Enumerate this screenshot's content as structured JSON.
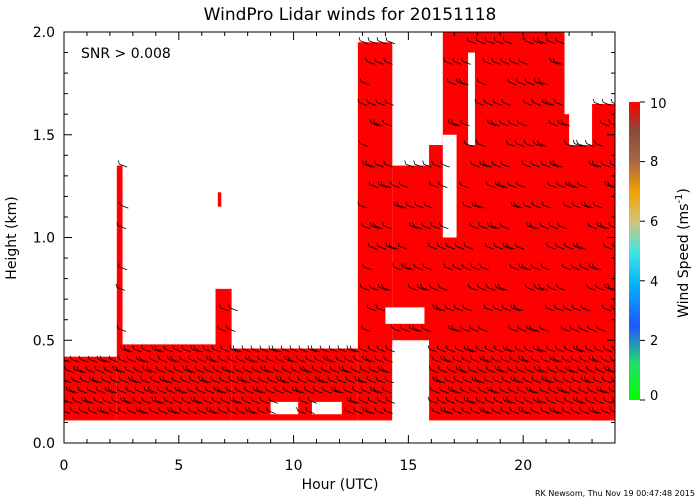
{
  "chart_data": {
    "type": "heatmap",
    "title": "WindPro Lidar winds for 20151118",
    "xlabel": "Hour (UTC)",
    "ylabel": "Height (km)",
    "xlim": [
      0,
      24
    ],
    "ylim": [
      0,
      2.0
    ],
    "x_ticks": [
      "0",
      "5",
      "10",
      "15",
      "20"
    ],
    "y_ticks": [
      "0.0",
      "0.5",
      "1.0",
      "1.5",
      "2.0"
    ],
    "annotation": "SNR > 0.008",
    "colorbar": {
      "label": "Wind Speed (ms",
      "label_sup": "-1",
      "label_close": ")",
      "ticks": [
        "0",
        "2",
        "4",
        "6",
        "8",
        "10"
      ],
      "range": [
        0,
        10
      ]
    },
    "credit": "RK Newsom, Thu Nov 19 00:47:48 2015",
    "colors": {
      "data_fill": "#ff0000",
      "barbs": "#000000",
      "background": "#ffffff"
    },
    "coverage": [
      {
        "x0": 0.0,
        "x1": 2.3,
        "y0": 0.11,
        "y1": 0.42
      },
      {
        "x0": 2.3,
        "x1": 2.55,
        "y0": 0.11,
        "y1": 1.35
      },
      {
        "x0": 2.55,
        "x1": 6.6,
        "y0": 0.11,
        "y1": 0.48
      },
      {
        "x0": 6.6,
        "x1": 7.3,
        "y0": 0.11,
        "y1": 0.75
      },
      {
        "x0": 7.3,
        "x1": 12.8,
        "y0": 0.11,
        "y1": 0.46
      },
      {
        "x0": 12.8,
        "x1": 14.3,
        "y0": 0.11,
        "y1": 1.95
      },
      {
        "x0": 14.3,
        "x1": 16.0,
        "y0": 0.5,
        "y1": 1.35
      },
      {
        "x0": 15.9,
        "x1": 24.0,
        "y0": 0.11,
        "y1": 1.45
      },
      {
        "x0": 16.5,
        "x1": 22.0,
        "y0": 1.2,
        "y1": 2.0
      },
      {
        "x0": 23.0,
        "x1": 24.0,
        "y0": 0.11,
        "y1": 1.65
      }
    ],
    "gaps": [
      {
        "x0": 14.3,
        "x1": 15.9,
        "y0": 0.11,
        "y1": 0.48
      },
      {
        "x0": 9.0,
        "x1": 10.2,
        "y0": 0.14,
        "y1": 0.2
      },
      {
        "x0": 10.8,
        "x1": 12.1,
        "y0": 0.14,
        "y1": 0.2
      },
      {
        "x0": 14.0,
        "x1": 15.7,
        "y0": 0.58,
        "y1": 0.66
      },
      {
        "x0": 16.5,
        "x1": 17.1,
        "y0": 1.0,
        "y1": 1.5
      },
      {
        "x0": 17.6,
        "x1": 17.9,
        "y0": 1.45,
        "y1": 1.9
      },
      {
        "x0": 21.8,
        "x1": 23.0,
        "y0": 1.6,
        "y1": 2.0
      }
    ],
    "isolated": [
      {
        "x0": 6.7,
        "x1": 6.85,
        "y0": 1.15,
        "y1": 1.22
      }
    ],
    "barb_levels_km": [
      0.15,
      0.2,
      0.25,
      0.3,
      0.35,
      0.4,
      0.45,
      0.55,
      0.65,
      0.75,
      0.85,
      0.95,
      1.05,
      1.15,
      1.25,
      1.35,
      1.45,
      1.55,
      1.65,
      1.75,
      1.85,
      1.95
    ]
  }
}
